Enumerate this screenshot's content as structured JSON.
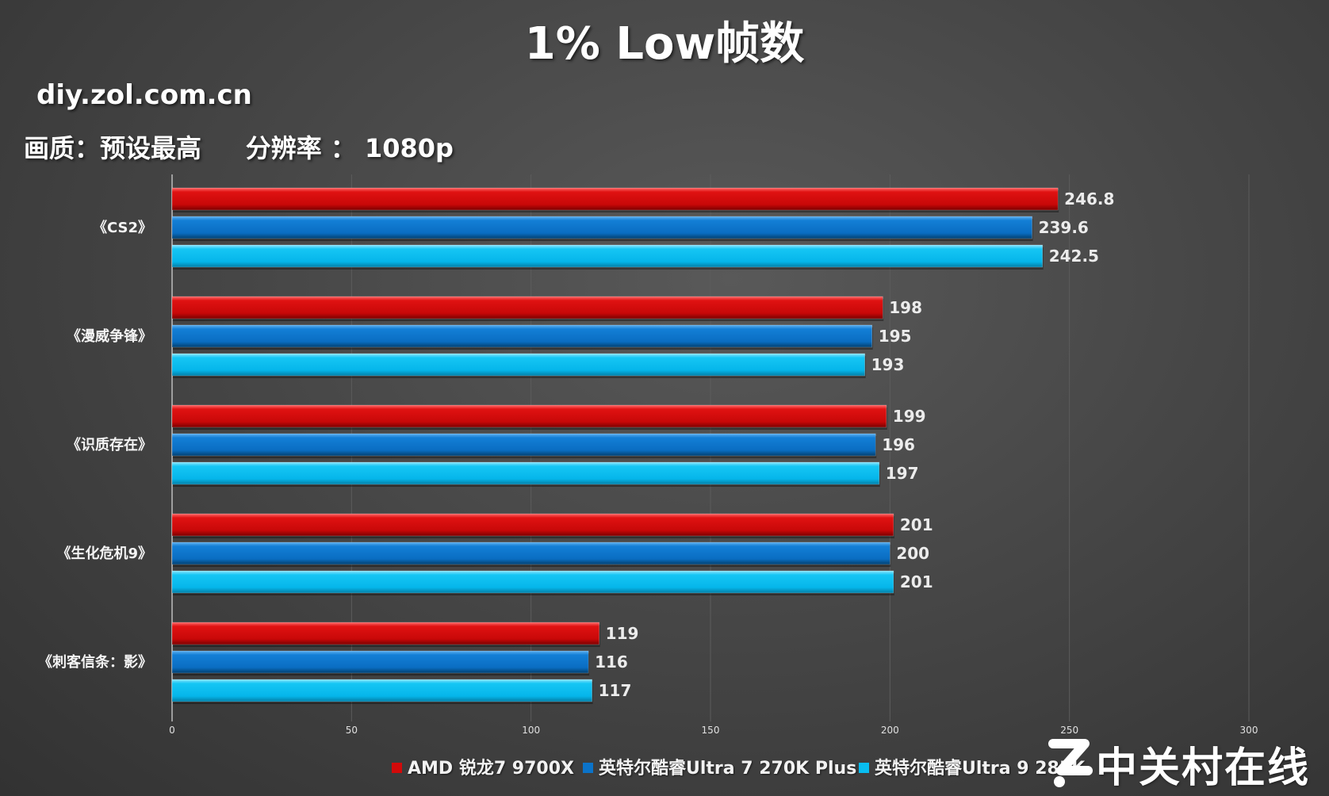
{
  "header": {
    "title": "1% Low帧数",
    "site": "diy.zol.com.cn",
    "settings": "画质：预设最高     分辨率 ： 1080p"
  },
  "chart_data": {
    "type": "bar",
    "orientation": "horizontal",
    "title": "1% Low帧数",
    "categories": [
      "《CS2》",
      "《漫威争锋》",
      "《识质存在》",
      "《生化危机9》",
      "《刺客信条：影》"
    ],
    "series": [
      {
        "name": "AMD 锐龙7 9700X",
        "color": "#d20a0a",
        "values": [
          246.8,
          198,
          199,
          201,
          119
        ]
      },
      {
        "name": "英特尔酷睿Ultra 7 270K Plus",
        "color": "#0b73c9",
        "values": [
          239.6,
          195,
          196,
          200,
          116
        ]
      },
      {
        "name": "英特尔酷睿Ultra 9 285K",
        "color": "#08bdf0",
        "values": [
          242.5,
          193,
          197,
          201,
          117
        ]
      }
    ],
    "x_ticks": [
      0,
      50,
      100,
      150,
      200,
      250,
      300
    ],
    "xlim": [
      0,
      300
    ],
    "grid": true,
    "legend_position": "bottom"
  },
  "watermark": {
    "text": "中关村在线"
  }
}
